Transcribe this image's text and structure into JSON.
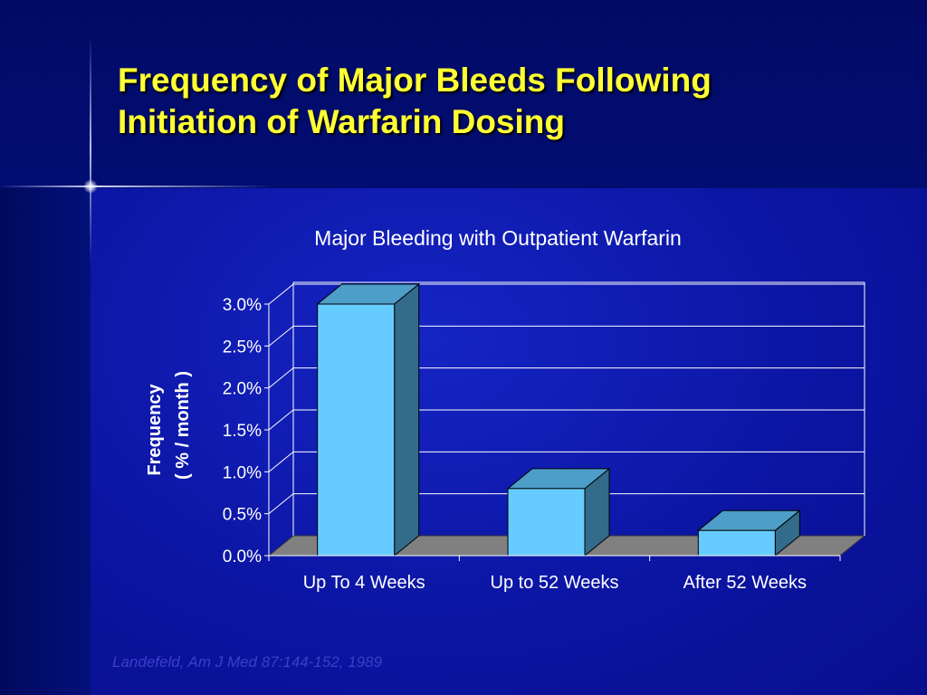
{
  "slide": {
    "title_line1": "Frequency of Major Bleeds Following",
    "title_line2": "Initiation of Warfarin Dosing",
    "citation": "Landefeld, Am J Med 87:144-152, 1989",
    "title_color": "#ffff33",
    "background_color": "#0a0f8c"
  },
  "chart_data": {
    "type": "bar",
    "title": "Major Bleeding with Outpatient Warfarin",
    "ylabel": "Frequency",
    "ylabel_line2": "( % / month )",
    "xlabel": "",
    "categories": [
      "Up To 4 Weeks",
      "Up to 52 Weeks",
      "After 52 Weeks"
    ],
    "series": [
      {
        "values": [
          3.0,
          0.8,
          0.3
        ],
        "color": "#66ccff"
      }
    ],
    "ylim": [
      0,
      3.0
    ],
    "yticks": [
      "0.0%",
      "0.5%",
      "1.0%",
      "1.5%",
      "2.0%",
      "2.5%",
      "3.0%"
    ],
    "grid": true,
    "legend": "none",
    "style": "3d-column"
  }
}
